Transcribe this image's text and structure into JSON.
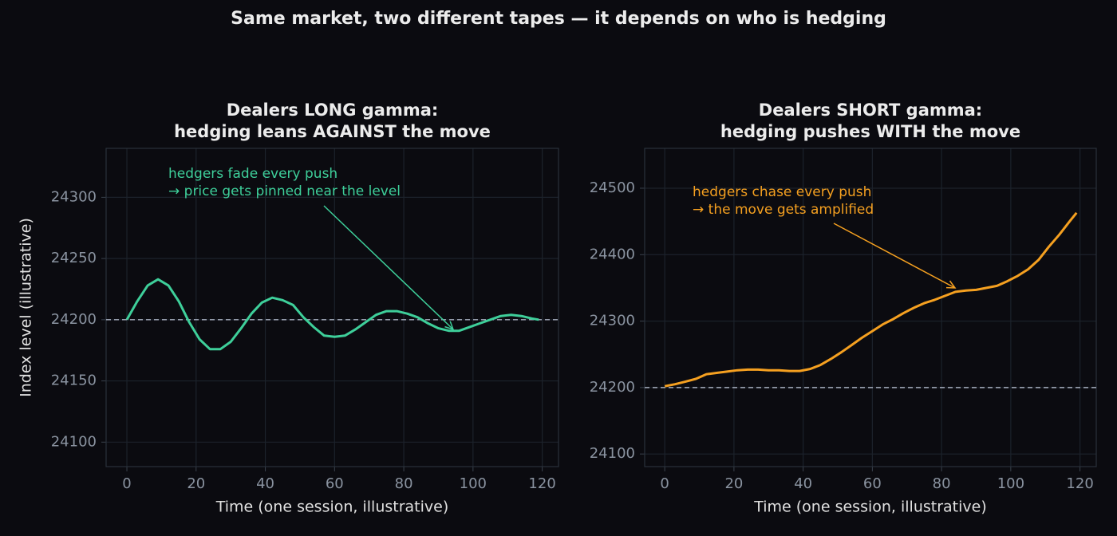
{
  "title": "Same market, two different tapes — it depends on who is hedging",
  "chart_data": [
    {
      "type": "line",
      "title": [
        "Dealers LONG gamma:",
        "hedging leans AGAINST the move"
      ],
      "xlabel": "Time (one session, illustrative)",
      "ylabel": "Index level (illustrative)",
      "annotation": [
        "hedgers fade every push",
        "→ price gets pinned near the level"
      ],
      "color": "#3ecf9a",
      "hline": 24200,
      "grid": true,
      "x": [
        0,
        3,
        6,
        9,
        12,
        15,
        18,
        21,
        24,
        27,
        30,
        33,
        36,
        39,
        42,
        45,
        48,
        51,
        54,
        57,
        60,
        63,
        66,
        69,
        72,
        75,
        78,
        81,
        84,
        87,
        90,
        93,
        96,
        99,
        102,
        105,
        108,
        111,
        114,
        117,
        119
      ],
      "values": [
        24200,
        24215,
        24228,
        24233,
        24228,
        24215,
        24198,
        24184,
        24176,
        24176,
        24182,
        24193,
        24205,
        24214,
        24218,
        24216,
        24212,
        24202,
        24194,
        24187,
        24186,
        24187,
        24192,
        24198,
        24204,
        24207,
        24207,
        24205,
        24202,
        24197,
        24193,
        24191,
        24191,
        24194,
        24197,
        24200,
        24203,
        24204,
        24203,
        24201,
        24200
      ],
      "xlim": [
        -6,
        124.7
      ],
      "xticks": [
        0,
        20,
        40,
        60,
        80,
        100,
        120
      ],
      "ylim": [
        24080,
        24340
      ],
      "yticks": [
        24100,
        24150,
        24200,
        24250,
        24300
      ]
    },
    {
      "type": "line",
      "title": [
        "Dealers SHORT gamma:",
        "hedging pushes WITH the move"
      ],
      "xlabel": "Time (one session, illustrative)",
      "annotation": [
        "hedgers chase every push",
        "→ the move gets amplified"
      ],
      "color": "#f5a020",
      "hline": 24200,
      "grid": true,
      "x": [
        0,
        3,
        6,
        9,
        12,
        15,
        18,
        21,
        24,
        27,
        30,
        33,
        36,
        39,
        42,
        45,
        48,
        51,
        54,
        57,
        60,
        63,
        66,
        69,
        72,
        75,
        78,
        81,
        84,
        87,
        90,
        93,
        96,
        99,
        102,
        105,
        108,
        111,
        114,
        117,
        119
      ],
      "values": [
        24202,
        24205,
        24209,
        24213,
        24220,
        24222,
        24224,
        24226,
        24227,
        24227,
        24226,
        24226,
        24225,
        24225,
        24228,
        24234,
        24243,
        24253,
        24264,
        24275,
        24285,
        24295,
        24303,
        24312,
        24320,
        24327,
        24332,
        24338,
        24344,
        24346,
        24347,
        24350,
        24353,
        24360,
        24368,
        24378,
        24392,
        24412,
        24430,
        24450,
        24463
      ],
      "xlim": [
        -5.8,
        124.7
      ],
      "xticks": [
        0,
        20,
        40,
        60,
        80,
        100,
        120
      ],
      "ylim": [
        24081,
        24560
      ],
      "yticks": [
        24100,
        24200,
        24300,
        24400,
        24500
      ]
    }
  ]
}
